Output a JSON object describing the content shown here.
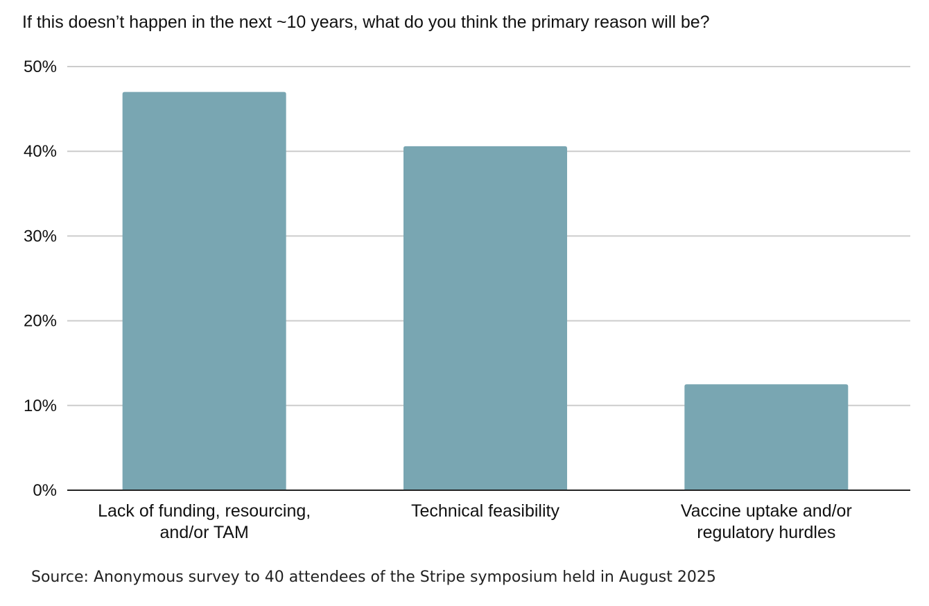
{
  "chart_data": {
    "type": "bar",
    "title": "If this doesn’t happen in the next ~10 years, what do you think the primary reason will be?",
    "categories": [
      [
        "Lack of funding, resourcing,",
        "and/or TAM"
      ],
      [
        "Technical feasibility"
      ],
      [
        "Vaccine uptake and/or",
        "regulatory hurdles"
      ]
    ],
    "values": [
      47,
      40.6,
      12.5
    ],
    "unit": "%",
    "ylim": [
      0,
      50
    ],
    "yticks": [
      0,
      10,
      20,
      30,
      40,
      50
    ],
    "ytick_labels": [
      "0%",
      "10%",
      "20%",
      "30%",
      "40%",
      "50%"
    ],
    "xlabel": "",
    "ylabel": "",
    "grid": true,
    "legend": "none",
    "bar_color": "#79a6b2",
    "grid_color": "#cccccc",
    "axis_color": "#222222"
  },
  "source": "Source: Anonymous survey to 40 attendees of the Stripe symposium held in August 2025"
}
